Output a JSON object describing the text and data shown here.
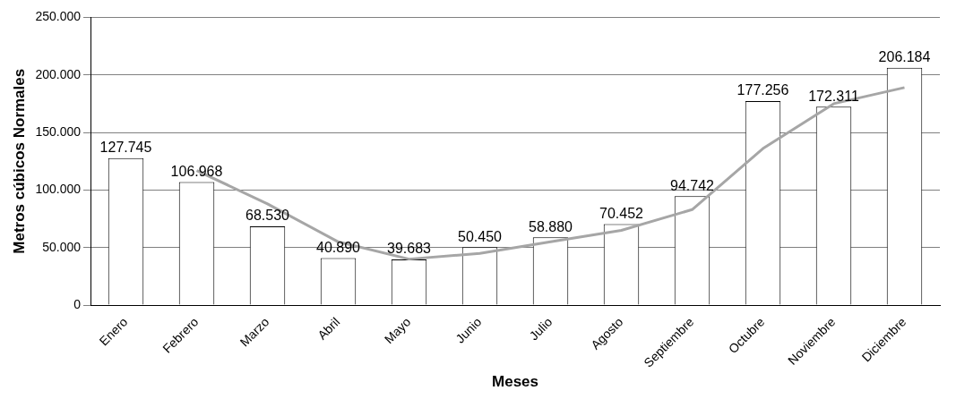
{
  "chart_data": {
    "type": "bar",
    "xlabel": "Meses",
    "ylabel": "Metros cúbicos Normales",
    "categories": [
      "Enero",
      "Febrero",
      "Marzo",
      "Abril",
      "Mayo",
      "Junio",
      "Julio",
      "Agosto",
      "Septiembre",
      "Octubre",
      "Noviembre",
      "Diciembre"
    ],
    "series": [
      {
        "color": "#ffffff",
        "values": [
          127745,
          106968,
          68530,
          40890,
          39683,
          50450,
          58880,
          70452,
          94742,
          177256,
          172311,
          206184
        ],
        "value_labels": [
          "127.745",
          "106.968",
          "68.530",
          "40.890",
          "39.683",
          "50.450",
          "58.880",
          "70.452",
          "94.742",
          "177.256",
          "172.311",
          "206.184"
        ]
      },
      {
        "type": "line",
        "color": "#a6a6a6",
        "values": [
          null,
          117000,
          88000,
          55000,
          40000,
          45000,
          55000,
          65000,
          83000,
          136000,
          175000,
          189000
        ]
      }
    ],
    "ylim": [
      0,
      250000
    ],
    "yticks": [
      {
        "value": 0,
        "label": "0"
      },
      {
        "value": 50000,
        "label": "50.000"
      },
      {
        "value": 100000,
        "label": "100.000"
      },
      {
        "value": 150000,
        "label": "150.000"
      },
      {
        "value": 200000,
        "label": "200.000"
      },
      {
        "value": 250000,
        "label": "250.000"
      }
    ],
    "grid": "y",
    "legend": false,
    "marker": "none",
    "line_style": "solid"
  }
}
